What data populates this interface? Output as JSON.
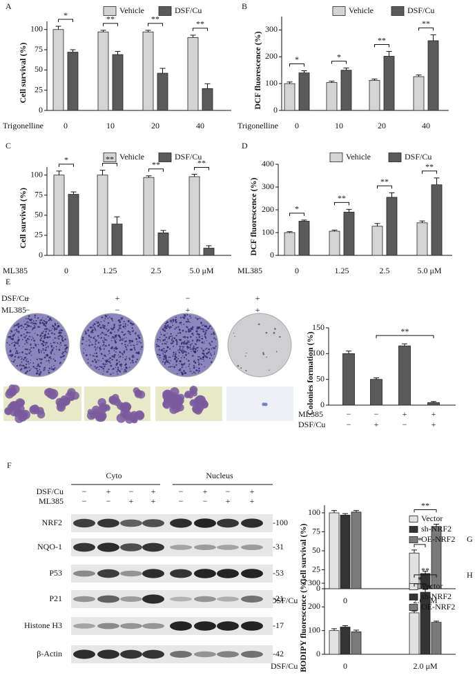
{
  "chart_data": [
    {
      "type": "bar",
      "panel": "A",
      "ylabel": "Cell survival  (%)",
      "xlabel": "Trigonelline",
      "categories": [
        "0",
        "10",
        "20",
        "40"
      ],
      "series": [
        {
          "name": "Vehicle",
          "color": "#d4d4d4",
          "values": [
            100,
            97,
            97,
            90
          ],
          "errors": [
            4,
            2,
            2,
            3
          ]
        },
        {
          "name": "DSF/Cu",
          "color": "#5a5a5a",
          "values": [
            72,
            69,
            46,
            27
          ],
          "errors": [
            3,
            4,
            6,
            6
          ]
        }
      ],
      "ylim": [
        0,
        110
      ],
      "yticks": [
        0,
        25,
        50,
        75,
        100
      ],
      "significance": [
        "*",
        "**",
        "**",
        "**"
      ]
    },
    {
      "type": "bar",
      "panel": "B",
      "ylabel": "DCF fluorescence (%)",
      "xlabel": "Trigonelline",
      "categories": [
        "0",
        "10",
        "20",
        "40"
      ],
      "series": [
        {
          "name": "Vehicle",
          "color": "#d4d4d4",
          "values": [
            100,
            104,
            112,
            126
          ],
          "errors": [
            6,
            5,
            5,
            6
          ]
        },
        {
          "name": "DSF/Cu",
          "color": "#5a5a5a",
          "values": [
            140,
            150,
            202,
            260
          ],
          "errors": [
            8,
            8,
            18,
            22
          ]
        }
      ],
      "ylim": [
        0,
        350
      ],
      "yticks": [
        0,
        100,
        200,
        300
      ],
      "significance": [
        "*",
        "*",
        "**",
        "**"
      ]
    },
    {
      "type": "bar",
      "panel": "C",
      "ylabel": "Cell survival  (%)",
      "xlabel": "ML385",
      "categories": [
        "0",
        "1.25",
        "2.5",
        "5.0 μM"
      ],
      "series": [
        {
          "name": "Vehicle",
          "color": "#d4d4d4",
          "values": [
            100,
            100,
            97,
            98
          ],
          "errors": [
            5,
            6,
            2,
            3
          ]
        },
        {
          "name": "DSF/Cu",
          "color": "#5a5a5a",
          "values": [
            76,
            39,
            28,
            9
          ],
          "errors": [
            3,
            9,
            3,
            3
          ]
        }
      ],
      "ylim": [
        0,
        110
      ],
      "yticks": [
        0,
        25,
        50,
        75,
        100
      ],
      "significance": [
        "*",
        "**",
        "**",
        "**"
      ]
    },
    {
      "type": "bar",
      "panel": "D",
      "ylabel": "DCF fluorescence (%)",
      "xlabel": "ML385",
      "categories": [
        "0",
        "1.25",
        "2.5",
        "5.0 μM"
      ],
      "series": [
        {
          "name": "Vehicle",
          "color": "#d4d4d4",
          "values": [
            100,
            106,
            128,
            143
          ],
          "errors": [
            4,
            5,
            12,
            8
          ]
        },
        {
          "name": "DSF/Cu",
          "color": "#5a5a5a",
          "values": [
            150,
            190,
            255,
            310
          ],
          "errors": [
            5,
            12,
            20,
            30
          ]
        }
      ],
      "ylim": [
        0,
        400
      ],
      "yticks": [
        0,
        100,
        200,
        300,
        400
      ],
      "significance": [
        "*",
        "**",
        "**",
        "**"
      ]
    },
    {
      "type": "bar",
      "panel": "E",
      "ylabel": "Colonies formation (%)",
      "series": [
        {
          "color": "#5a5a5a",
          "values": [
            100,
            50,
            115,
            5
          ],
          "errors": [
            5,
            3,
            4,
            2
          ]
        }
      ],
      "conditions": [
        {
          "name": "ML385",
          "values": [
            "−",
            "−",
            "+",
            "+"
          ]
        },
        {
          "name": "DSF/Cu",
          "values": [
            "−",
            "+",
            "−",
            "+"
          ]
        }
      ],
      "ylim": [
        0,
        150
      ],
      "yticks": [
        0,
        50,
        100,
        150
      ],
      "significance": [
        {
          "label": "**",
          "bars": [
            1,
            3
          ]
        }
      ]
    },
    {
      "type": "bar",
      "panel": "G",
      "ylabel": "Cell survival (%)",
      "xlabel": "DSF/Cu",
      "categories": [
        "0",
        "2.0 μM"
      ],
      "series": [
        {
          "name": "Vector",
          "color": "#e2e2e2",
          "values": [
            100,
            47
          ],
          "errors": [
            3,
            4
          ]
        },
        {
          "name": "sh-NRF2",
          "color": "#333333",
          "values": [
            97,
            20
          ],
          "errors": [
            2,
            3
          ]
        },
        {
          "name": "OE-NRF2",
          "color": "#7a7a7a",
          "values": [
            101,
            82
          ],
          "errors": [
            2,
            3
          ]
        }
      ],
      "ylim": [
        0,
        110
      ],
      "yticks": [
        0,
        25,
        50,
        75,
        100
      ],
      "significance": [
        {
          "label": "*",
          "category": "2.0 μM",
          "between": [
            "Vector",
            "sh-NRF2"
          ]
        },
        {
          "label": "**",
          "category": "2.0 μM",
          "between": [
            "Vector",
            "OE-NRF2"
          ]
        }
      ]
    },
    {
      "type": "bar",
      "panel": "H",
      "ylabel": "BODIPY fluorescence (%)",
      "xlabel": "DSF/Cu",
      "categories": [
        "0",
        "2.0 μM"
      ],
      "series": [
        {
          "name": "Vector",
          "color": "#e2e2e2",
          "values": [
            100,
            175
          ],
          "errors": [
            8,
            8
          ]
        },
        {
          "name": "sh-NRF2",
          "color": "#333333",
          "values": [
            115,
            262
          ],
          "errors": [
            6,
            12
          ]
        },
        {
          "name": "OE-NRF2",
          "color": "#7a7a7a",
          "values": [
            95,
            135
          ],
          "errors": [
            7,
            5
          ]
        }
      ],
      "ylim": [
        0,
        300
      ],
      "yticks": [
        0,
        100,
        200,
        300
      ],
      "significance": [
        {
          "label": "*",
          "category": "2.0 μM",
          "between": [
            "Vector",
            "sh-NRF2"
          ]
        },
        {
          "label": "**",
          "category": "2.0 μM",
          "between": [
            "Vector",
            "OE-NRF2"
          ]
        }
      ]
    }
  ],
  "colony_images": {
    "rows": [
      {
        "name": "DSF/Cu",
        "signs": [
          "−",
          "+",
          "−",
          "+"
        ]
      },
      {
        "name": "ML385",
        "signs": [
          "−",
          "−",
          "+",
          "+"
        ]
      }
    ]
  },
  "blot": {
    "panel": "F",
    "groups": [
      "Cyto",
      "Nucleus"
    ],
    "treatments": [
      {
        "name": "DSF/Cu",
        "signs": [
          "−",
          "+",
          "−",
          "+",
          "−",
          "+",
          "−",
          "+"
        ]
      },
      {
        "name": "ML385",
        "signs": [
          "−",
          "−",
          "+",
          "+",
          "−",
          "−",
          "+",
          "+"
        ]
      }
    ],
    "bands": [
      {
        "name": "NRF2",
        "size": "-100"
      },
      {
        "name": "NQO-1",
        "size": "-31"
      },
      {
        "name": "P53",
        "size": "-53"
      },
      {
        "name": "P21",
        "size": "-21"
      },
      {
        "name": "Histone H3",
        "size": "-17"
      },
      {
        "name": "β-Actin",
        "size": "-42"
      }
    ]
  }
}
